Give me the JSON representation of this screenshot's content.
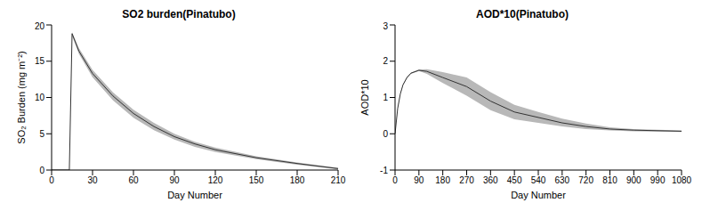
{
  "chart_data": [
    {
      "type": "line",
      "title": "SO2 burden(Pinatubo)",
      "x_label": "Day Number",
      "y_label": "SO₂ Burden (mg m⁻²)",
      "x": [
        0,
        13,
        15,
        20,
        30,
        45,
        60,
        75,
        90,
        105,
        120,
        150,
        180,
        210
      ],
      "values": [
        0,
        0,
        18.8,
        16.4,
        13.3,
        10.2,
        7.8,
        6,
        4.6,
        3.6,
        2.8,
        1.7,
        0.9,
        0.2
      ],
      "lower": [
        0,
        0,
        18.5,
        16,
        12.8,
        9.6,
        7.2,
        5.5,
        4.2,
        3.2,
        2.5,
        1.5,
        0.75,
        0.1
      ],
      "upper": [
        0,
        0,
        19,
        16.8,
        13.8,
        10.7,
        8.3,
        6.5,
        5,
        3.9,
        3.1,
        1.9,
        1.05,
        0.3
      ],
      "color": "#333333",
      "xlim": [
        0,
        210
      ],
      "xticks": [
        0,
        30,
        60,
        90,
        120,
        150,
        180,
        210
      ],
      "ylim": [
        0,
        20
      ],
      "yticks": [
        0,
        5,
        10,
        15,
        20
      ],
      "grid": false
    },
    {
      "type": "line",
      "title": "AOD*10(Pinatubo)",
      "x_label": "Day Number",
      "y_label": "AOD*10",
      "x": [
        0,
        10,
        20,
        30,
        45,
        60,
        90,
        120,
        180,
        270,
        360,
        450,
        540,
        630,
        720,
        810,
        900,
        1080
      ],
      "values": [
        0,
        0.7,
        1.1,
        1.35,
        1.55,
        1.67,
        1.75,
        1.72,
        1.55,
        1.3,
        0.9,
        0.6,
        0.45,
        0.3,
        0.2,
        0.13,
        0.1,
        0.07
      ],
      "lower": [
        0,
        0.68,
        1.08,
        1.33,
        1.53,
        1.65,
        1.73,
        1.65,
        1.4,
        1.05,
        0.65,
        0.4,
        0.3,
        0.2,
        0.13,
        0.09,
        0.07,
        0.05
      ],
      "upper": [
        0,
        0.72,
        1.12,
        1.37,
        1.57,
        1.69,
        1.77,
        1.78,
        1.7,
        1.55,
        1.15,
        0.8,
        0.6,
        0.42,
        0.28,
        0.18,
        0.13,
        0.09
      ],
      "color": "#333333",
      "xlim": [
        0,
        1080
      ],
      "xticks": [
        0,
        90,
        180,
        270,
        360,
        450,
        540,
        630,
        720,
        810,
        900,
        990,
        1080
      ],
      "ylim": [
        -1,
        3
      ],
      "yticks": [
        -1,
        0,
        1,
        2,
        3
      ],
      "grid": false
    }
  ]
}
